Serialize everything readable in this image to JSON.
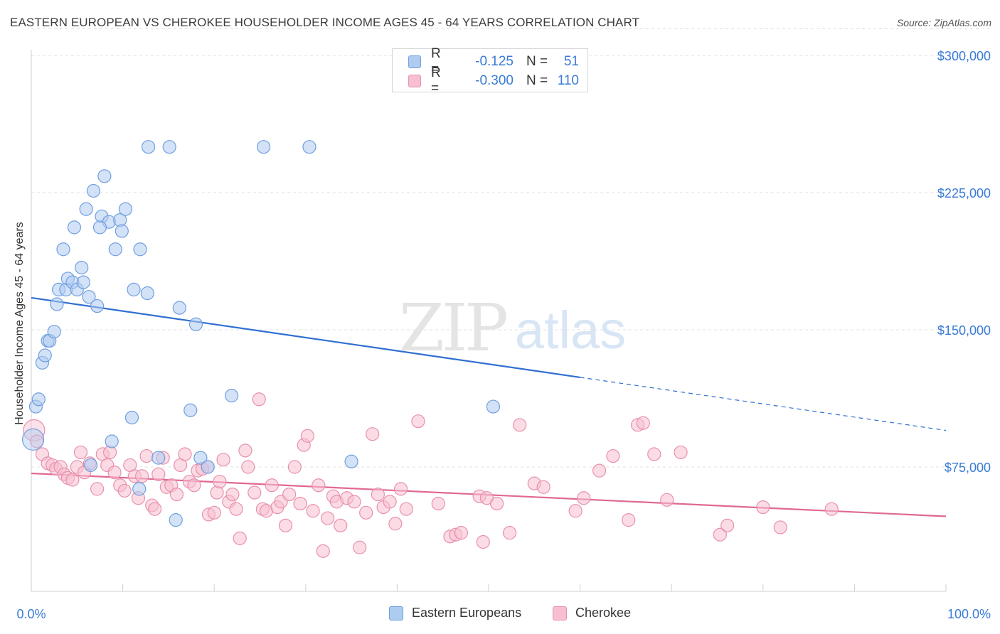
{
  "title": "EASTERN EUROPEAN VS CHEROKEE HOUSEHOLDER INCOME AGES 45 - 64 YEARS CORRELATION CHART",
  "source": "Source: ZipAtlas.com",
  "watermark": {
    "zip": "ZIP",
    "atlas": "atlas"
  },
  "legend": {
    "rows": [
      {
        "r_label": "R =",
        "r_value": "-0.125",
        "n_label": "N =",
        "n_value": "51"
      },
      {
        "r_label": "R =",
        "r_value": "-0.300",
        "n_label": "N =",
        "n_value": "110"
      }
    ]
  },
  "colors": {
    "blue_fill": "#aecbf0",
    "blue_stroke": "#6f9fe0",
    "blue_line": "#2f6fd1",
    "pink_fill": "#f7bfd0",
    "pink_stroke": "#e890ad",
    "pink_line": "#e06893",
    "axis_label": "#3a7bd5"
  },
  "chart_data": {
    "type": "scatter",
    "title": "EASTERN EUROPEAN VS CHEROKEE HOUSEHOLDER INCOME AGES 45 - 64 YEARS CORRELATION CHART",
    "xlabel": "",
    "ylabel": "Householder Income Ages 45 - 64 years",
    "xlim": [
      0,
      100
    ],
    "ylim": [
      0,
      315000
    ],
    "x_tick_labels": [
      "0.0%",
      "100.0%"
    ],
    "y_ticks": [
      75000,
      150000,
      225000,
      300000
    ],
    "y_tick_labels": [
      "$75,000",
      "$150,000",
      "$225,000",
      "$300,000"
    ],
    "grid": "horizontal dashed",
    "legend_position": "top-center",
    "series": [
      {
        "name": "Eastern Europeans",
        "color": "#6f9fe0",
        "r": -0.125,
        "n": 51,
        "trend": {
          "x_start": 0,
          "y_start": 167500,
          "x_solid_end": 60,
          "y_solid_end": 124000,
          "x_end": 100,
          "y_end": 95000
        },
        "points": [
          [
            0.2,
            90000
          ],
          [
            0.5,
            108000
          ],
          [
            0.8,
            112000
          ],
          [
            1.2,
            132000
          ],
          [
            1.5,
            136000
          ],
          [
            1.8,
            144000
          ],
          [
            2.0,
            144000
          ],
          [
            2.5,
            149000
          ],
          [
            2.8,
            164000
          ],
          [
            3.0,
            172000
          ],
          [
            3.5,
            194000
          ],
          [
            3.8,
            172000
          ],
          [
            4.0,
            178000
          ],
          [
            4.5,
            176000
          ],
          [
            4.7,
            206000
          ],
          [
            5.0,
            172000
          ],
          [
            5.5,
            184000
          ],
          [
            5.7,
            176000
          ],
          [
            6.0,
            216000
          ],
          [
            6.3,
            168000
          ],
          [
            6.8,
            226000
          ],
          [
            7.2,
            163000
          ],
          [
            7.7,
            212000
          ],
          [
            8.0,
            234000
          ],
          [
            8.5,
            209000
          ],
          [
            7.5,
            206000
          ],
          [
            9.2,
            194000
          ],
          [
            9.7,
            210000
          ],
          [
            9.9,
            204000
          ],
          [
            10.3,
            216000
          ],
          [
            11.0,
            102000
          ],
          [
            11.2,
            172000
          ],
          [
            11.8,
            63000
          ],
          [
            11.9,
            194000
          ],
          [
            12.7,
            170000
          ],
          [
            12.8,
            250000
          ],
          [
            15.1,
            250000
          ],
          [
            13.9,
            80000
          ],
          [
            15.8,
            46000
          ],
          [
            16.2,
            162000
          ],
          [
            17.4,
            106000
          ],
          [
            18.0,
            153000
          ],
          [
            18.5,
            80000
          ],
          [
            19.3,
            75000
          ],
          [
            21.9,
            114000
          ],
          [
            25.4,
            250000
          ],
          [
            30.4,
            250000
          ],
          [
            35.0,
            78000
          ],
          [
            50.5,
            108000
          ],
          [
            6.5,
            76000
          ],
          [
            8.8,
            89000
          ]
        ]
      },
      {
        "name": "Cherokee",
        "color": "#e890ad",
        "r": -0.3,
        "n": 110,
        "trend": {
          "x_start": 0,
          "y_start": 71500,
          "x_end": 100,
          "y_end": 48000
        },
        "points": [
          [
            0.3,
            95000
          ],
          [
            0.6,
            89000
          ],
          [
            1.2,
            82000
          ],
          [
            1.8,
            77000
          ],
          [
            2.3,
            76000
          ],
          [
            2.7,
            74000
          ],
          [
            3.2,
            75000
          ],
          [
            3.6,
            71000
          ],
          [
            4.0,
            69000
          ],
          [
            4.5,
            68000
          ],
          [
            5.0,
            75000
          ],
          [
            5.4,
            83000
          ],
          [
            5.8,
            72000
          ],
          [
            6.4,
            77000
          ],
          [
            7.2,
            63000
          ],
          [
            7.8,
            82000
          ],
          [
            8.3,
            76000
          ],
          [
            8.6,
            83000
          ],
          [
            9.1,
            72000
          ],
          [
            9.7,
            65000
          ],
          [
            10.2,
            62000
          ],
          [
            10.8,
            76000
          ],
          [
            11.3,
            70000
          ],
          [
            11.7,
            58000
          ],
          [
            12.1,
            70000
          ],
          [
            12.6,
            81000
          ],
          [
            13.2,
            54000
          ],
          [
            13.5,
            52000
          ],
          [
            13.9,
            71000
          ],
          [
            14.4,
            80000
          ],
          [
            14.8,
            64000
          ],
          [
            15.3,
            65000
          ],
          [
            15.9,
            60000
          ],
          [
            16.3,
            76000
          ],
          [
            16.8,
            82000
          ],
          [
            17.3,
            67000
          ],
          [
            17.8,
            65000
          ],
          [
            18.2,
            73000
          ],
          [
            18.7,
            74000
          ],
          [
            19.3,
            75000
          ],
          [
            19.4,
            49000
          ],
          [
            20.0,
            50000
          ],
          [
            20.3,
            61000
          ],
          [
            20.6,
            67000
          ],
          [
            21.0,
            79000
          ],
          [
            21.6,
            56000
          ],
          [
            22.0,
            60000
          ],
          [
            22.4,
            52000
          ],
          [
            22.8,
            36000
          ],
          [
            23.4,
            84000
          ],
          [
            23.7,
            75000
          ],
          [
            24.4,
            61000
          ],
          [
            24.9,
            112000
          ],
          [
            25.3,
            52000
          ],
          [
            25.7,
            51000
          ],
          [
            26.3,
            65000
          ],
          [
            26.9,
            53000
          ],
          [
            27.3,
            56000
          ],
          [
            27.8,
            43000
          ],
          [
            28.2,
            60000
          ],
          [
            28.8,
            75000
          ],
          [
            29.4,
            55000
          ],
          [
            29.8,
            87000
          ],
          [
            30.2,
            92000
          ],
          [
            30.8,
            51000
          ],
          [
            31.4,
            65000
          ],
          [
            31.9,
            29000
          ],
          [
            32.4,
            47000
          ],
          [
            33.0,
            59000
          ],
          [
            33.4,
            56000
          ],
          [
            33.8,
            43000
          ],
          [
            34.5,
            58000
          ],
          [
            35.3,
            56000
          ],
          [
            35.9,
            31000
          ],
          [
            36.6,
            50000
          ],
          [
            37.3,
            93000
          ],
          [
            37.9,
            60000
          ],
          [
            38.5,
            53000
          ],
          [
            39.2,
            56000
          ],
          [
            39.8,
            44000
          ],
          [
            40.4,
            63000
          ],
          [
            41.0,
            52000
          ],
          [
            42.3,
            100000
          ],
          [
            44.5,
            55000
          ],
          [
            45.8,
            37000
          ],
          [
            46.4,
            38000
          ],
          [
            47.0,
            39000
          ],
          [
            49.0,
            59000
          ],
          [
            49.4,
            34000
          ],
          [
            49.8,
            58000
          ],
          [
            50.9,
            55000
          ],
          [
            52.3,
            39000
          ],
          [
            53.4,
            98000
          ],
          [
            55.0,
            66000
          ],
          [
            56.0,
            64000
          ],
          [
            59.5,
            51000
          ],
          [
            60.4,
            58000
          ],
          [
            62.1,
            73000
          ],
          [
            63.6,
            81000
          ],
          [
            65.3,
            46000
          ],
          [
            66.3,
            98000
          ],
          [
            66.9,
            99000
          ],
          [
            68.1,
            82000
          ],
          [
            69.5,
            57000
          ],
          [
            71.0,
            83000
          ],
          [
            75.3,
            38000
          ],
          [
            76.1,
            43000
          ],
          [
            80.0,
            53000
          ],
          [
            81.9,
            42000
          ],
          [
            87.5,
            52000
          ]
        ]
      }
    ]
  }
}
